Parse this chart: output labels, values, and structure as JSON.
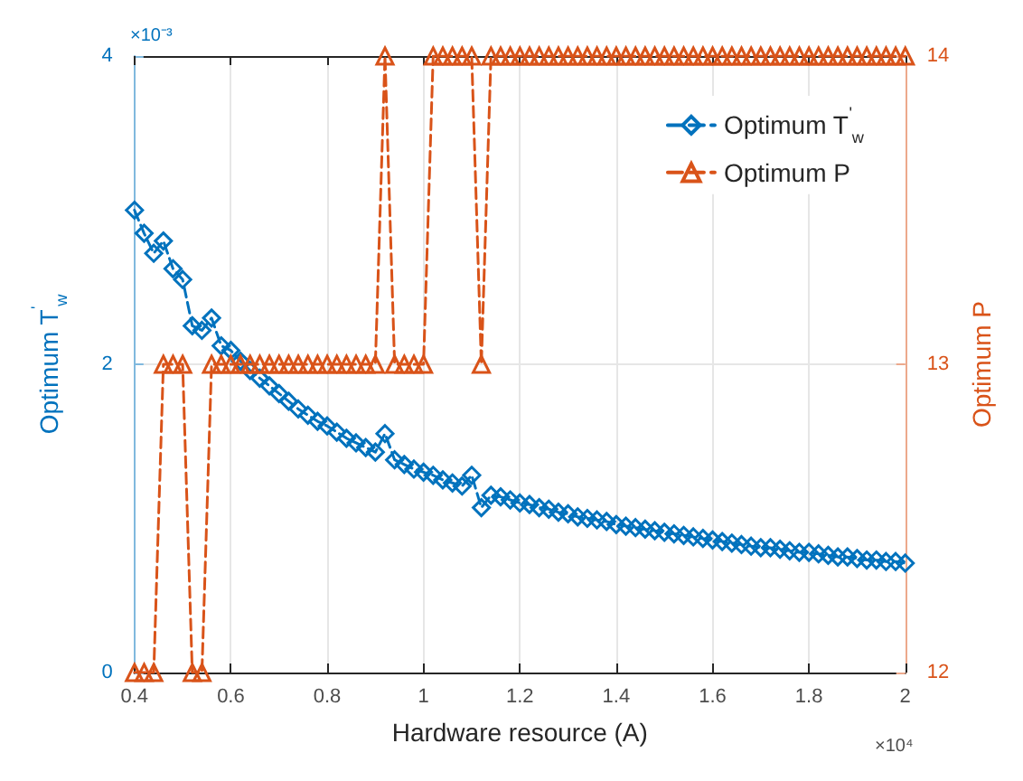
{
  "chart_data": {
    "type": "line",
    "xlabel": "Hardware resource (A)",
    "ylabel": "Optimum T$^{'}$$_{w}$",
    "y2label": "Optimum P",
    "x": [
      0.4,
      0.42,
      0.44,
      0.46,
      0.48,
      0.5,
      0.52,
      0.54,
      0.56,
      0.58,
      0.6,
      0.62,
      0.64,
      0.66,
      0.68,
      0.7,
      0.72,
      0.74,
      0.76,
      0.78,
      0.8,
      0.82,
      0.84,
      0.86,
      0.88,
      0.9,
      0.92,
      0.94,
      0.96,
      0.98,
      1,
      1.02,
      1.04,
      1.06,
      1.08,
      1.1,
      1.12,
      1.14,
      1.16,
      1.18,
      1.2,
      1.22,
      1.24,
      1.26,
      1.28,
      1.3,
      1.32,
      1.34,
      1.36,
      1.38,
      1.4,
      1.42,
      1.44,
      1.46,
      1.48,
      1.5,
      1.52,
      1.54,
      1.56,
      1.58,
      1.6,
      1.62,
      1.64,
      1.66,
      1.68,
      1.7,
      1.72,
      1.74,
      1.76,
      1.78,
      1.8,
      1.82,
      1.84,
      1.86,
      1.88,
      1.9,
      1.92,
      1.94,
      1.96,
      1.98,
      2
    ],
    "series": [
      {
        "name": "Optimum T$^{'}$$_{w}$",
        "color": "#0072bd",
        "marker": "diamond",
        "values": [
          3.0,
          2.85,
          2.72,
          2.8,
          2.62,
          2.55,
          2.25,
          2.22,
          2.3,
          2.12,
          2.09,
          2.02,
          1.96,
          1.91,
          1.86,
          1.81,
          1.76,
          1.71,
          1.67,
          1.63,
          1.6,
          1.56,
          1.52,
          1.49,
          1.46,
          1.43,
          1.55,
          1.38,
          1.35,
          1.32,
          1.3,
          1.28,
          1.25,
          1.23,
          1.21,
          1.28,
          1.07,
          1.15,
          1.14,
          1.12,
          1.1,
          1.09,
          1.07,
          1.06,
          1.04,
          1.03,
          1.01,
          1.0,
          0.99,
          0.98,
          0.96,
          0.95,
          0.94,
          0.93,
          0.92,
          0.91,
          0.9,
          0.89,
          0.88,
          0.87,
          0.86,
          0.85,
          0.84,
          0.83,
          0.82,
          0.81,
          0.81,
          0.8,
          0.79,
          0.78,
          0.78,
          0.77,
          0.76,
          0.75,
          0.75,
          0.74,
          0.73,
          0.73,
          0.72,
          0.72,
          0.71
        ]
      },
      {
        "name": "Optimum P",
        "color": "#d95319",
        "marker": "triangle",
        "axis": "y2",
        "values": [
          12,
          12,
          12,
          13,
          13,
          13,
          12,
          12,
          13,
          13,
          13,
          13,
          13,
          13,
          13,
          13,
          13,
          13,
          13,
          13,
          13,
          13,
          13,
          13,
          13,
          13,
          14,
          13,
          13,
          13,
          13,
          14,
          14,
          14,
          14,
          14,
          13,
          14,
          14,
          14,
          14,
          14,
          14,
          14,
          14,
          14,
          14,
          14,
          14,
          14,
          14,
          14,
          14,
          14,
          14,
          14,
          14,
          14,
          14,
          14,
          14,
          14,
          14,
          14,
          14,
          14,
          14,
          14,
          14,
          14,
          14,
          14,
          14,
          14,
          14,
          14,
          14,
          14,
          14,
          14,
          14
        ]
      }
    ],
    "xlim": [
      0.4,
      2
    ],
    "xticks": [
      0.4,
      0.6,
      0.8,
      1,
      1.2,
      1.4,
      1.6,
      1.8,
      2
    ],
    "ylim": [
      0,
      4
    ],
    "yticks": [
      0,
      2,
      4
    ],
    "y2lim": [
      12,
      14
    ],
    "y2ticks": [
      12,
      13,
      14
    ],
    "annotations": [
      "×10⁻³",
      "×10⁴"
    ],
    "grid": true,
    "legend": "top right",
    "line_style": "dashed"
  }
}
